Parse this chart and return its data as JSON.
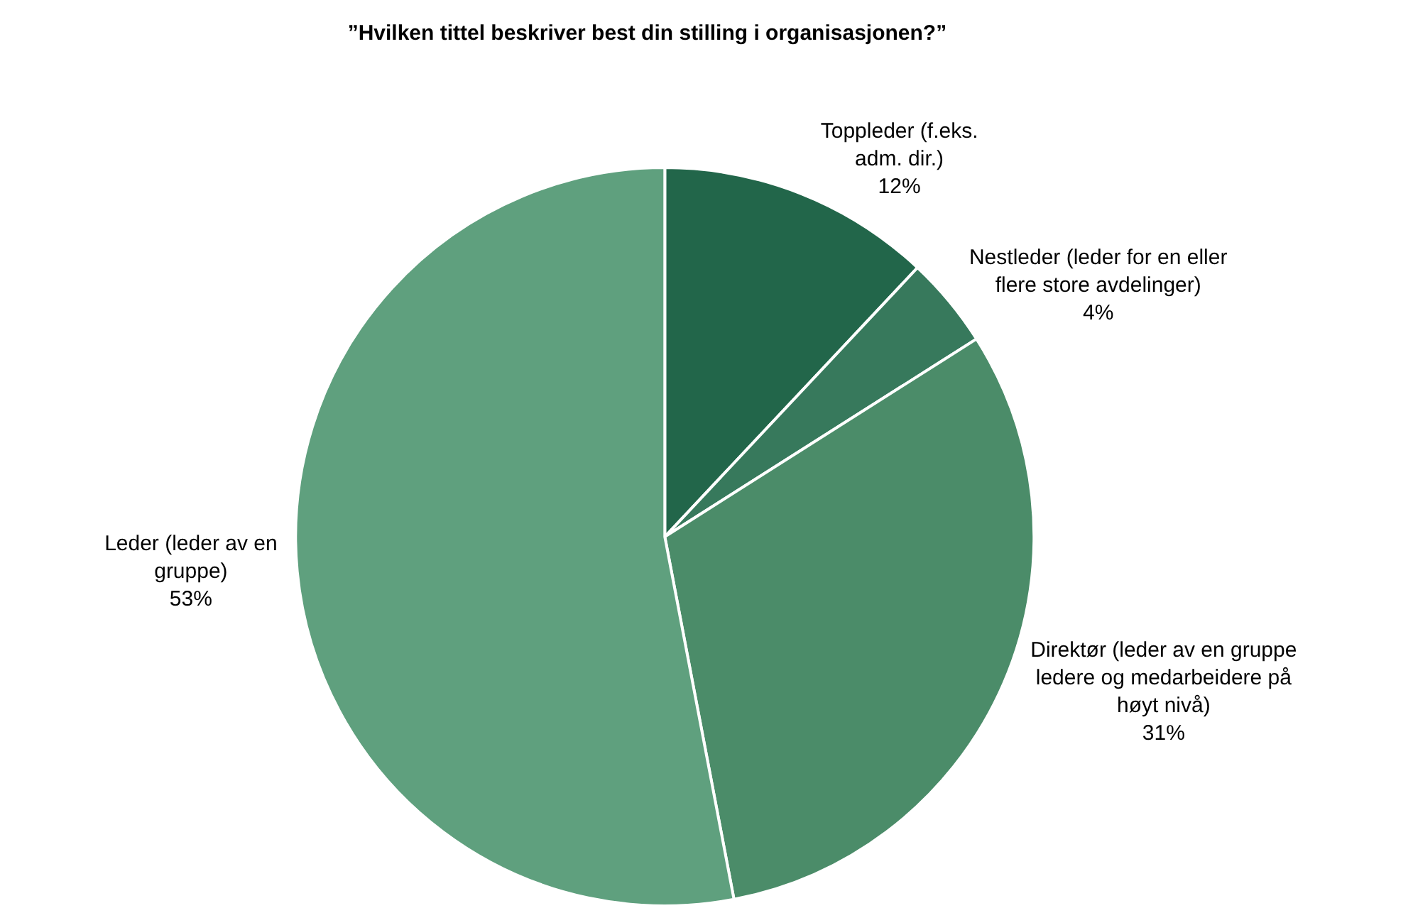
{
  "chart_data": {
    "type": "pie",
    "title": "”Hvilken tittel beskriver best din stilling i organisasjonen?”",
    "categories": [
      "Toppleder (f.eks.\nadm. dir.)",
      "Nestleder (leder for en eller\nflere store avdelinger)",
      "Direktør (leder av en gruppe\nledere og medarbeidere på\nhøyt nivå)",
      "Leder (leder av en\ngruppe)"
    ],
    "values": [
      12,
      4,
      31,
      53
    ],
    "colors": [
      "#22664a",
      "#37795c",
      "#4b8c69",
      "#5fa07e"
    ],
    "value_labels": [
      "12%",
      "4%",
      "31%",
      "53%"
    ],
    "legend": false
  }
}
